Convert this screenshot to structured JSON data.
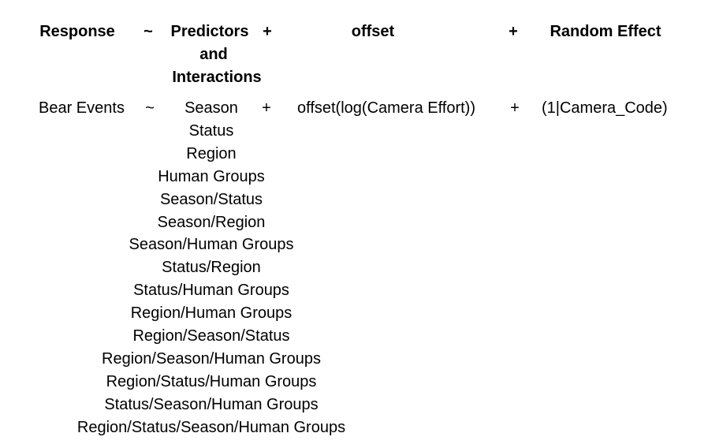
{
  "header": {
    "response": "Response",
    "tilde": "~",
    "predictors": "Predictors",
    "and": "and",
    "interactions": "Interactions",
    "plus1": "+",
    "offset": "offset",
    "plus2": "+",
    "random_effect": "Random Effect"
  },
  "row": {
    "response": "Bear Events",
    "tilde": "~",
    "plus1": "+",
    "offset": "offset(log(Camera Effort))",
    "plus2": "+",
    "random_effect": "(1|Camera_Code)"
  },
  "predictors": [
    "Season",
    "Status",
    "Region",
    "Human Groups",
    "Season/Status",
    "Season/Region",
    "Season/Human Groups",
    "Status/Region",
    "Status/Human Groups",
    "Region/Human Groups",
    "Region/Season/Status",
    "Region/Season/Human Groups",
    "Region/Status/Human Groups",
    "Status/Season/Human Groups",
    "Region/Status/Season/Human Groups"
  ]
}
